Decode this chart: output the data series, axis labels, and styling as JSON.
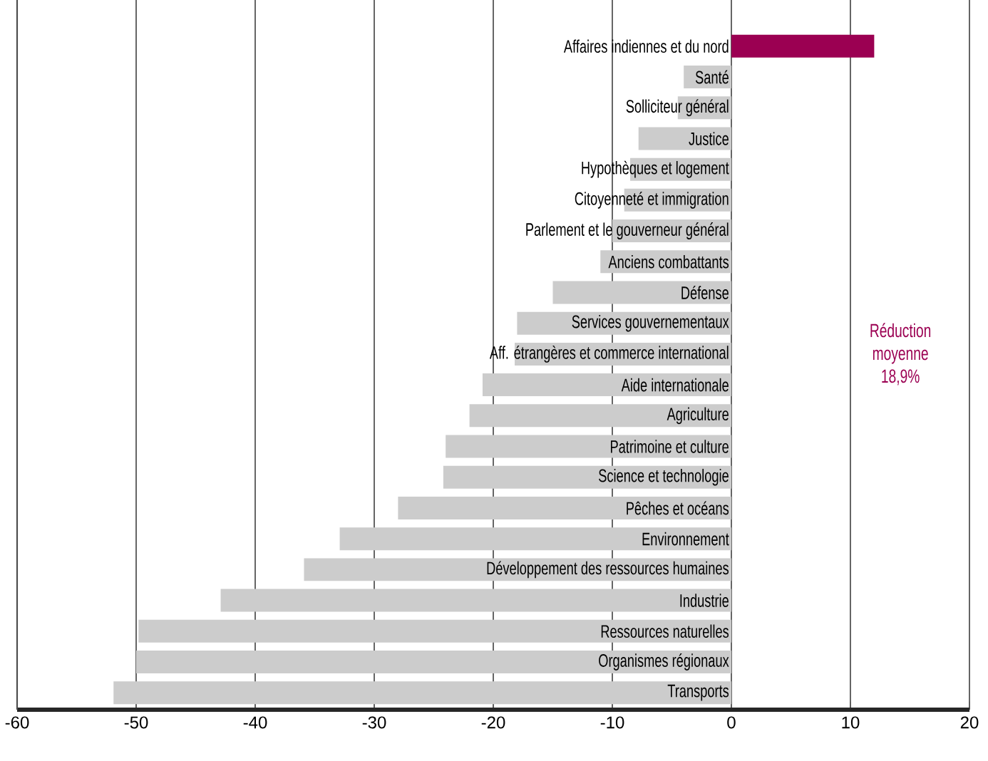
{
  "chart_data": {
    "type": "bar",
    "orientation": "horizontal",
    "categories": [
      "Affaires indiennes et du nord",
      "Santé",
      "Solliciteur général",
      "Justice",
      "Hypothèques et logement",
      "Citoyenneté et immigration",
      "Parlement et le gouverneur général",
      "Anciens combattants",
      "Défense",
      "Services gouvernementaux",
      "Aff. étrangères et commerce international",
      "Aide internationale",
      "Agriculture",
      "Patrimoine et culture",
      "Science et technologie",
      "Pêches et océans",
      "Environnement",
      "Développement des ressources humaines",
      "Industrie",
      "Ressources naturelles",
      "Organismes régionaux",
      "Transports"
    ],
    "values": [
      12,
      -4,
      -4.5,
      -7.8,
      -8.5,
      -9,
      -10,
      -11,
      -15,
      -18,
      -18.2,
      -20.9,
      -22,
      -24,
      -24.2,
      -28,
      -32.9,
      -35.9,
      -42.9,
      -49.8,
      -50,
      -51.9
    ],
    "colors": [
      "#9b0052",
      "#cccccc",
      "#cccccc",
      "#cccccc",
      "#cccccc",
      "#cccccc",
      "#cccccc",
      "#cccccc",
      "#cccccc",
      "#cccccc",
      "#cccccc",
      "#cccccc",
      "#cccccc",
      "#cccccc",
      "#cccccc",
      "#cccccc",
      "#cccccc",
      "#cccccc",
      "#cccccc",
      "#cccccc",
      "#cccccc",
      "#cccccc"
    ],
    "xlim": [
      -60,
      20
    ],
    "xticks": [
      -60,
      -50,
      -40,
      -30,
      -20,
      -10,
      0,
      10,
      20
    ],
    "grid": "x",
    "tick_labels": "x",
    "annotations": [
      "Réduction moyenne 18,9%"
    ]
  }
}
